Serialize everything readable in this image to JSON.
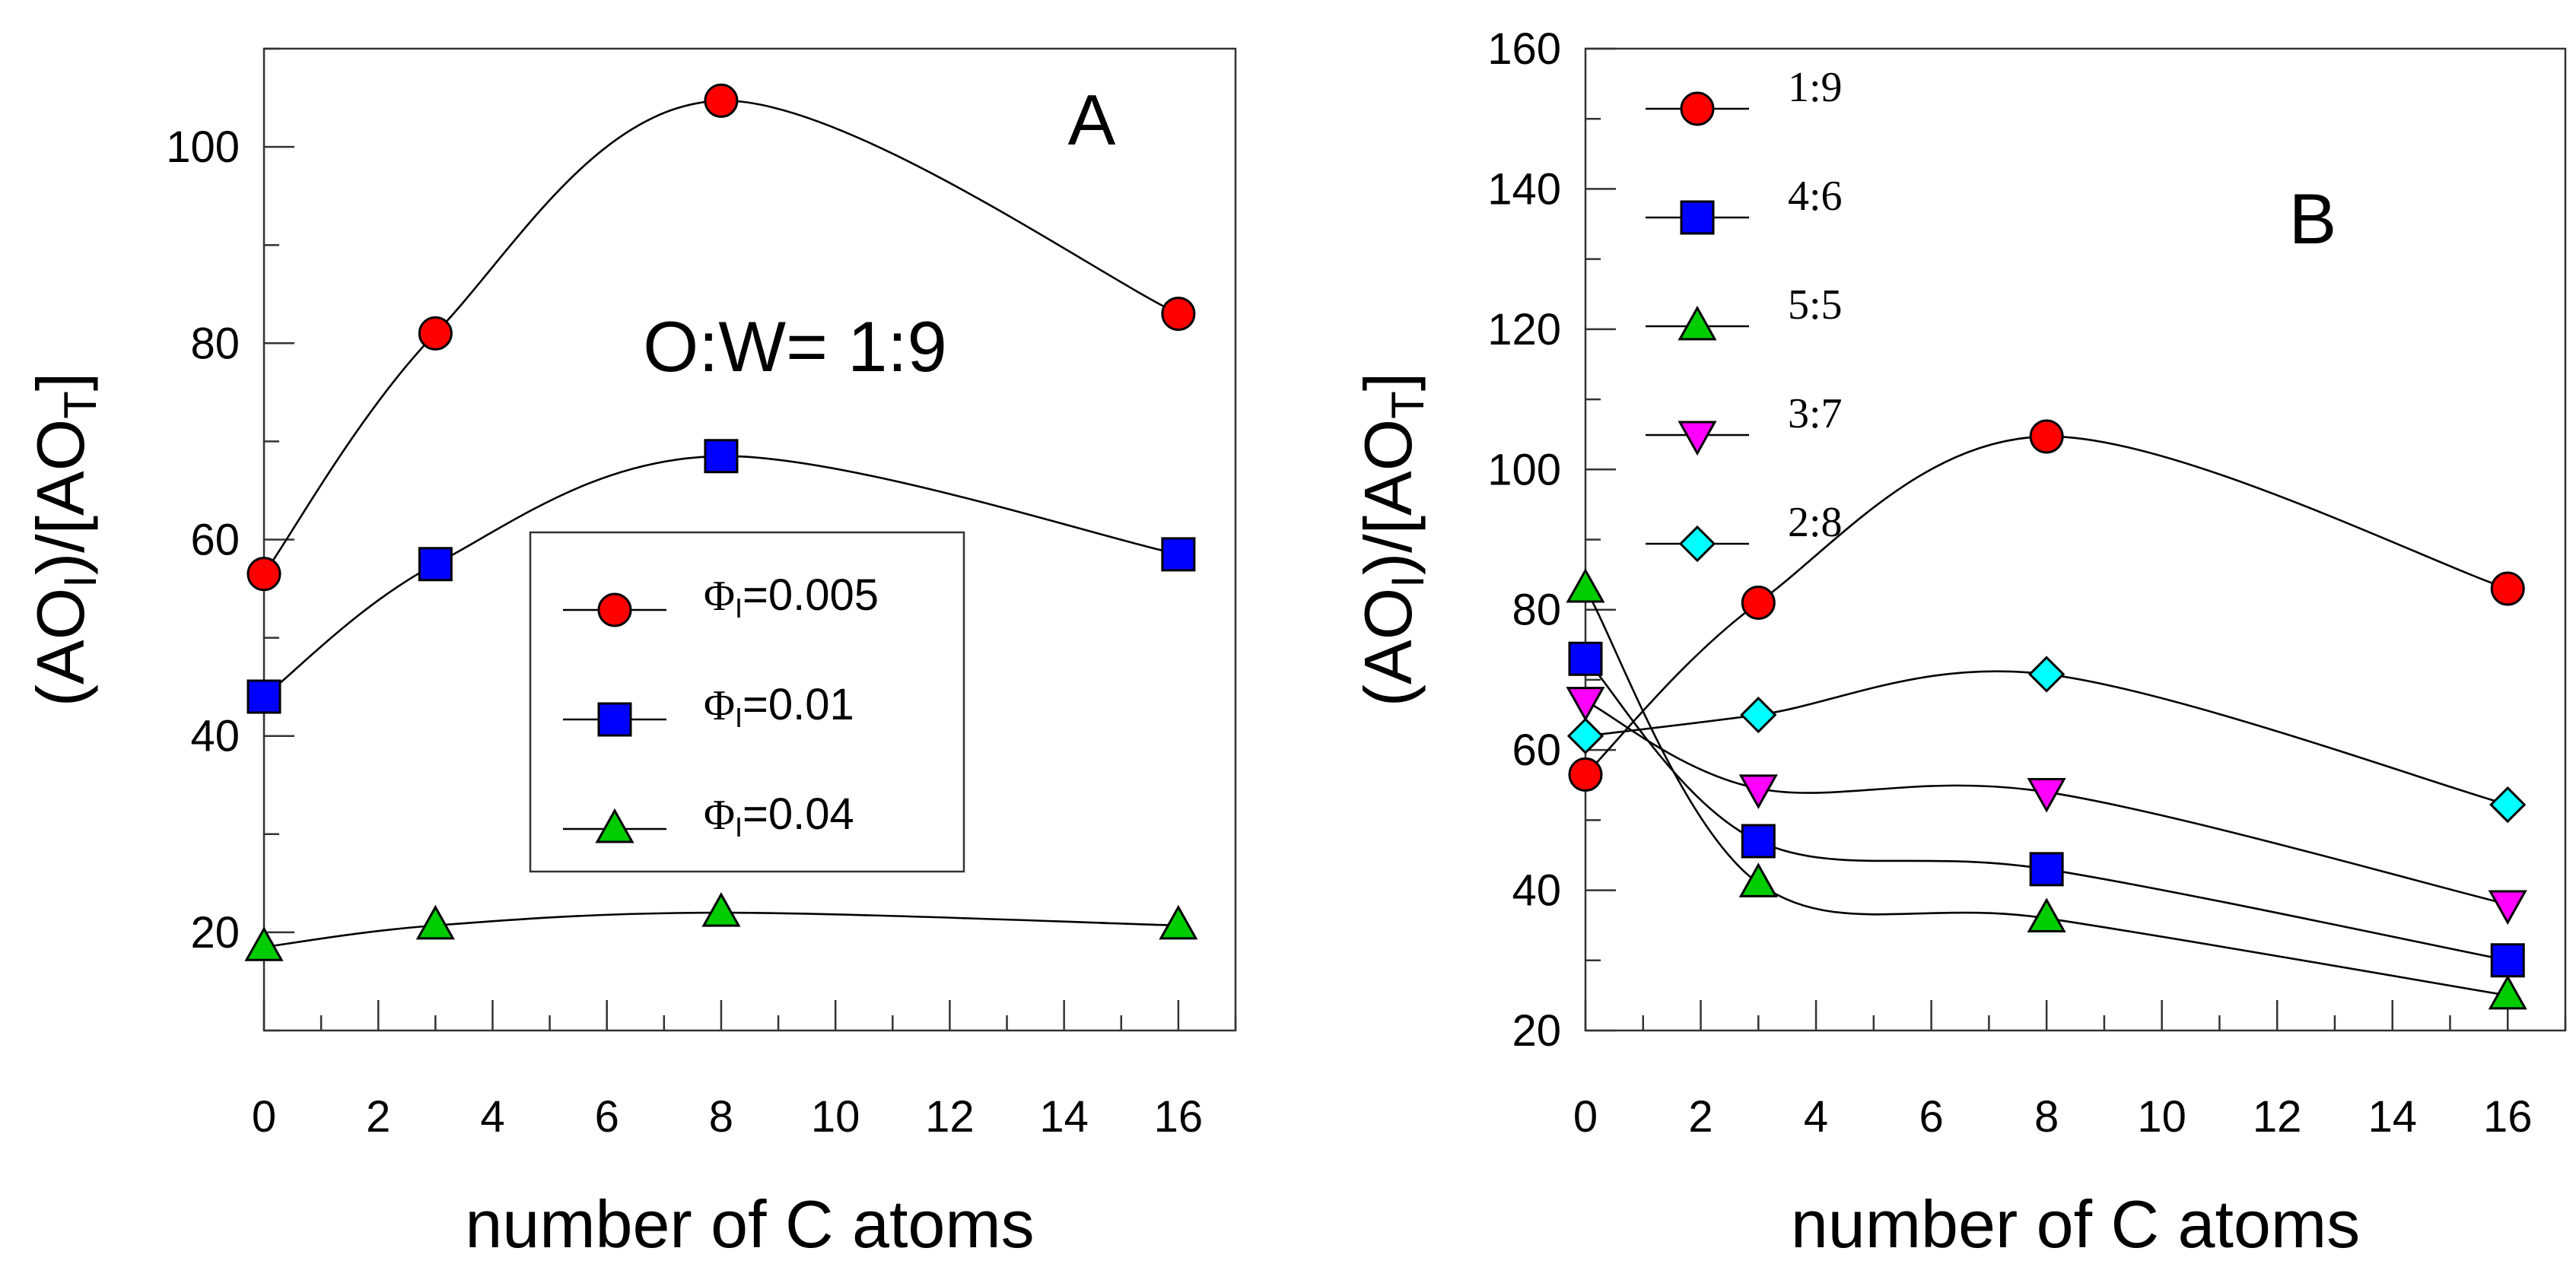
{
  "chart_data": [
    {
      "panel": "A",
      "type": "line",
      "xlabel": "number of C atoms",
      "ylabel": "(AOI)/[AOT]",
      "ylabel_parts": [
        "(AO",
        "I",
        ")/[AO",
        "T",
        "]"
      ],
      "xlim": [
        0,
        17
      ],
      "ylim": [
        10,
        110
      ],
      "xticks": [
        0,
        2,
        4,
        6,
        8,
        10,
        12,
        14,
        16
      ],
      "yticks": [
        20,
        40,
        60,
        80,
        100
      ],
      "annotation": "O:W= 1:9",
      "legend_location": "center-right",
      "series": [
        {
          "name": "ΦI=0.005",
          "legend_sym": "Φ",
          "legend_sub": "I",
          "legend_val": "=0.005",
          "marker": "circle",
          "color": "#ff0000",
          "x": [
            0,
            3,
            8,
            16
          ],
          "y": [
            56.5,
            81,
            104.7,
            83
          ]
        },
        {
          "name": "ΦI=0.01",
          "legend_sym": "Φ",
          "legend_sub": "I",
          "legend_val": "=0.01",
          "marker": "square",
          "color": "#0000ff",
          "x": [
            0,
            3,
            8,
            16
          ],
          "y": [
            44,
            57.5,
            68.5,
            58.5
          ]
        },
        {
          "name": "ΦI=0.04",
          "legend_sym": "Φ",
          "legend_sub": "I",
          "legend_val": "=0.04",
          "marker": "triangle-up",
          "color": "#00cc00",
          "x": [
            0,
            3,
            8,
            16
          ],
          "y": [
            18.5,
            20.7,
            22,
            20.7
          ]
        }
      ]
    },
    {
      "panel": "B",
      "type": "line",
      "xlabel": "number of C atoms",
      "ylabel": "(AOI)/[AOT]",
      "ylabel_parts": [
        "(AO",
        "I",
        ")/[AO",
        "T",
        "]"
      ],
      "xlim": [
        0,
        17
      ],
      "ylim": [
        20,
        160
      ],
      "xticks": [
        0,
        2,
        4,
        6,
        8,
        10,
        12,
        14,
        16
      ],
      "yticks": [
        20,
        40,
        60,
        80,
        100,
        120,
        140,
        160
      ],
      "legend_location": "top-left",
      "series": [
        {
          "name": "1:9",
          "marker": "circle",
          "color": "#ff0000",
          "x": [
            0,
            3,
            8,
            16
          ],
          "y": [
            56.5,
            81,
            104.7,
            83
          ]
        },
        {
          "name": "4:6",
          "marker": "square",
          "color": "#0000ff",
          "x": [
            0,
            3,
            8,
            16
          ],
          "y": [
            73,
            47,
            43,
            30
          ]
        },
        {
          "name": "5:5",
          "marker": "triangle-up",
          "color": "#00cc00",
          "x": [
            0,
            3,
            8,
            16
          ],
          "y": [
            83,
            41,
            36,
            25
          ]
        },
        {
          "name": "3:7",
          "marker": "triangle-down",
          "color": "#ff00ff",
          "x": [
            0,
            3,
            8,
            16
          ],
          "y": [
            67,
            54.5,
            54,
            38
          ]
        },
        {
          "name": "2:8",
          "marker": "diamond",
          "color": "#00ffff",
          "x": [
            0,
            3,
            8,
            16
          ],
          "y": [
            62,
            65,
            70.8,
            52.2
          ]
        }
      ]
    }
  ]
}
